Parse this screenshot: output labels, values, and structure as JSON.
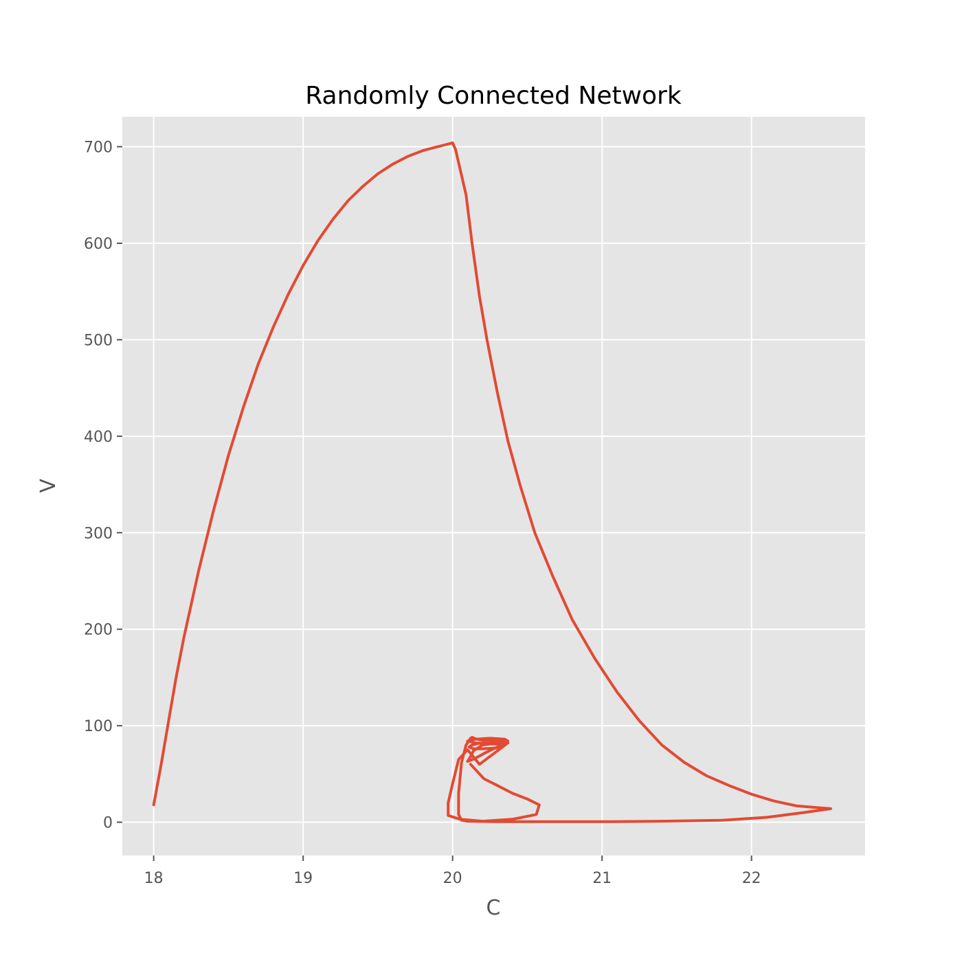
{
  "chart_data": {
    "type": "line",
    "title": "Randomly Connected Network",
    "xlabel": "C",
    "ylabel": "V",
    "xlim": [
      17.79,
      22.76
    ],
    "ylim": [
      -34.5,
      731
    ],
    "x_ticks": [
      18,
      19,
      20,
      21,
      22
    ],
    "y_ticks": [
      0,
      100,
      200,
      300,
      400,
      500,
      600,
      700
    ],
    "grid": true,
    "style": "ggplot",
    "colors": {
      "line": "#e24a33",
      "plot_background": "#e5e5e5",
      "grid": "#ffffff",
      "figure_background": "#ffffff"
    },
    "series": [
      {
        "x": [
          18.0,
          18.05,
          18.1,
          18.15,
          18.2,
          18.3,
          18.4,
          18.5,
          18.6,
          18.7,
          18.8,
          18.9,
          19.0,
          19.1,
          19.2,
          19.3,
          19.4,
          19.5,
          19.6,
          19.7,
          19.8,
          19.9,
          20.0,
          20.02,
          20.09,
          20.13,
          20.18,
          20.23,
          20.3,
          20.37,
          20.45,
          20.55,
          20.67,
          20.8,
          20.95,
          21.1,
          21.25,
          21.4,
          21.55,
          21.7,
          21.85,
          22.0,
          22.15,
          22.3,
          22.45,
          22.53,
          22.35,
          22.1,
          21.8,
          21.4,
          21.0,
          20.6,
          20.3,
          20.1,
          20.06,
          20.04,
          20.04,
          20.06,
          20.09,
          20.12,
          20.13,
          20.16,
          20.2,
          20.25,
          20.35,
          20.32,
          20.25,
          20.18,
          20.13,
          20.11,
          20.14,
          20.2,
          20.3,
          20.36,
          20.37,
          20.35,
          20.25,
          20.15,
          20.1,
          20.16,
          20.22,
          20.34,
          20.37,
          20.3,
          20.2,
          20.14,
          20.12,
          20.1,
          20.15,
          20.22,
          20.3,
          20.36,
          20.18,
          20.1,
          20.04,
          20.0,
          19.97,
          19.97,
          20.05,
          20.2,
          20.4,
          20.56,
          20.58,
          20.5,
          20.4,
          20.3,
          20.21,
          20.18,
          20.15,
          20.12
        ],
        "y": [
          18,
          60,
          105,
          150,
          190,
          260,
          323,
          380,
          430,
          475,
          513,
          547,
          577,
          603,
          625,
          644,
          659,
          672,
          682,
          690,
          696,
          700,
          704,
          697,
          650,
          600,
          545,
          500,
          445,
          395,
          350,
          300,
          255,
          210,
          170,
          135,
          105,
          80,
          62,
          48,
          38,
          29,
          22,
          17,
          15,
          14,
          10,
          5,
          2,
          1,
          0.5,
          0.5,
          0.6,
          1,
          2,
          8,
          30,
          62,
          80,
          87,
          88,
          86,
          85,
          85,
          84,
          82,
          82,
          82,
          80,
          78,
          76,
          76,
          77,
          81,
          84,
          86,
          87,
          86,
          84,
          82,
          81,
          81,
          82,
          82,
          80,
          74,
          68,
          63,
          66,
          72,
          78,
          81,
          60,
          75,
          65,
          40,
          20,
          7,
          3,
          1,
          3,
          8,
          18,
          24,
          30,
          38,
          45,
          50,
          55,
          60
        ]
      }
    ]
  }
}
